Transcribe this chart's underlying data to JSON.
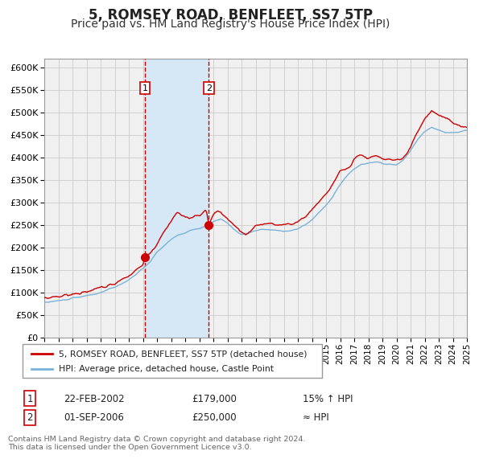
{
  "title": "5, ROMSEY ROAD, BENFLEET, SS7 5TP",
  "subtitle": "Price paid vs. HM Land Registry's House Price Index (HPI)",
  "title_fontsize": 12,
  "subtitle_fontsize": 10,
  "hpi_color": "#7ab3d9",
  "price_color": "#cc0000",
  "marker_color": "#cc0000",
  "grid_color": "#cccccc",
  "background_color": "#ffffff",
  "plot_bg_color": "#f0f0f0",
  "shading_color": "#d6e8f5",
  "dashed_line_color": "#cc0000",
  "ylim": [
    0,
    620000
  ],
  "yticks": [
    0,
    50000,
    100000,
    150000,
    200000,
    250000,
    300000,
    350000,
    400000,
    450000,
    500000,
    550000,
    600000
  ],
  "legend_label_price": "5, ROMSEY ROAD, BENFLEET, SS7 5TP (detached house)",
  "legend_label_hpi": "HPI: Average price, detached house, Castle Point",
  "transaction1_date": "22-FEB-2002",
  "transaction1_price": "£179,000",
  "transaction1_note": "15% ↑ HPI",
  "transaction1_year": 2002.14,
  "transaction1_value": 179000,
  "transaction2_date": "01-SEP-2006",
  "transaction2_price": "£250,000",
  "transaction2_note": "≈ HPI",
  "transaction2_year": 2006.67,
  "transaction2_value": 250000,
  "footer_text": "Contains HM Land Registry data © Crown copyright and database right 2024.\nThis data is licensed under the Open Government Licence v3.0.",
  "xstart": 1995,
  "xend": 2025
}
